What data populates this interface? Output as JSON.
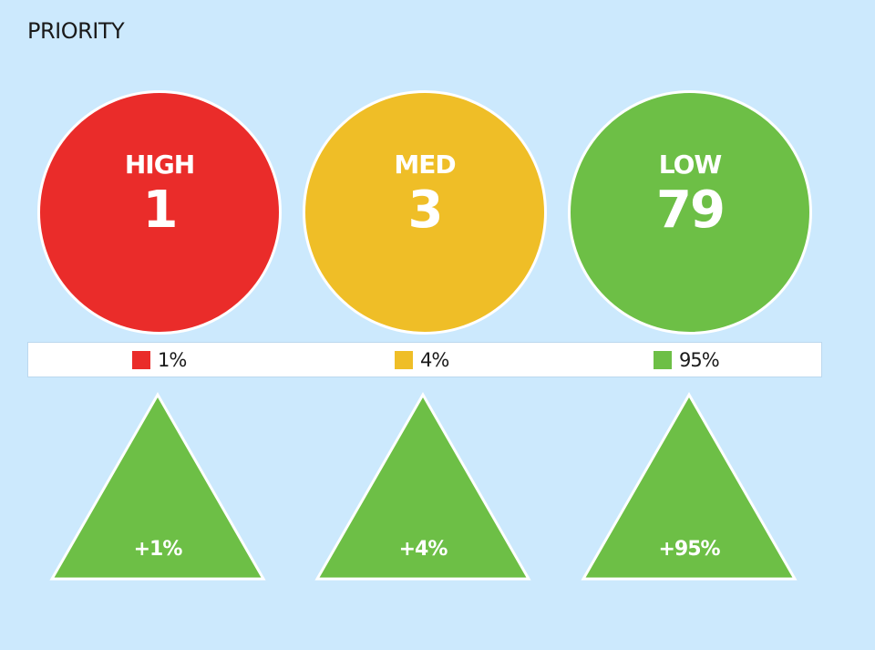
{
  "title": "PRIORITY",
  "colors": {
    "background": "#cce9fd",
    "high": "#ea2c2a",
    "med": "#efbe27",
    "low": "#6dbf46",
    "trend_up": "#6dbf46"
  },
  "priorities": [
    {
      "label": "HIGH",
      "count": "1",
      "percent": "1%",
      "trend": "+1%",
      "trend_icon": "triangle-up-icon"
    },
    {
      "label": "MED",
      "count": "3",
      "percent": "4%",
      "trend": "+4%",
      "trend_icon": "triangle-up-icon"
    },
    {
      "label": "LOW",
      "count": "79",
      "percent": "95%",
      "trend": "+95%",
      "trend_icon": "triangle-up-icon"
    }
  ]
}
